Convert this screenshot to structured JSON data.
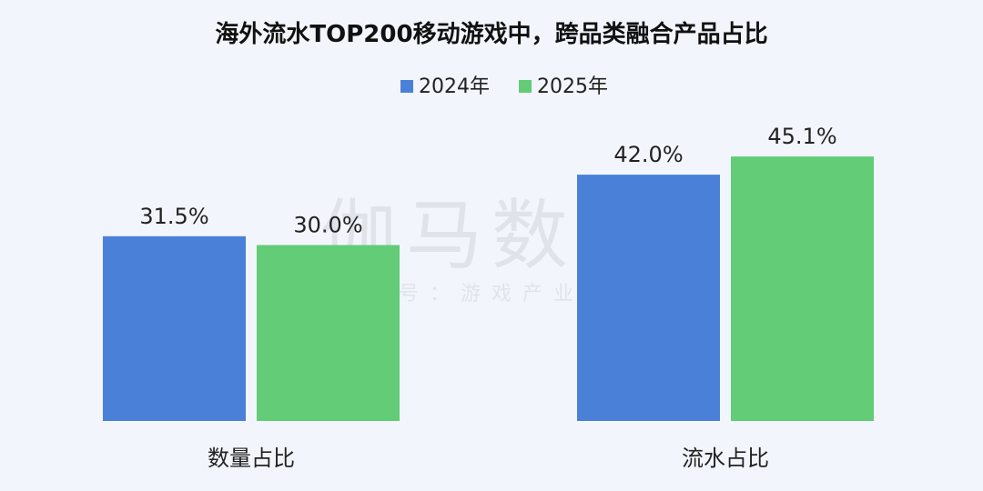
{
  "chart_data": {
    "type": "bar",
    "title": "海外流水TOP200移动游戏中，跨品类融合产品占比",
    "categories": [
      "数量占比",
      "流水占比"
    ],
    "series": [
      {
        "name": "2024年",
        "values": [
          31.5,
          42.0
        ],
        "labels": [
          "31.5%",
          "42.0%"
        ],
        "color": "#4a80d8"
      },
      {
        "name": "2025年",
        "values": [
          30.0,
          45.1
        ],
        "labels": [
          "30.0%",
          "45.1%"
        ],
        "color": "#62cc76"
      }
    ],
    "ylim": [
      0,
      60
    ],
    "grid": false,
    "legend": "top-center"
  },
  "watermark": {
    "brand": "伽马数据",
    "subtitle": "微信号：游戏产业报告"
  }
}
